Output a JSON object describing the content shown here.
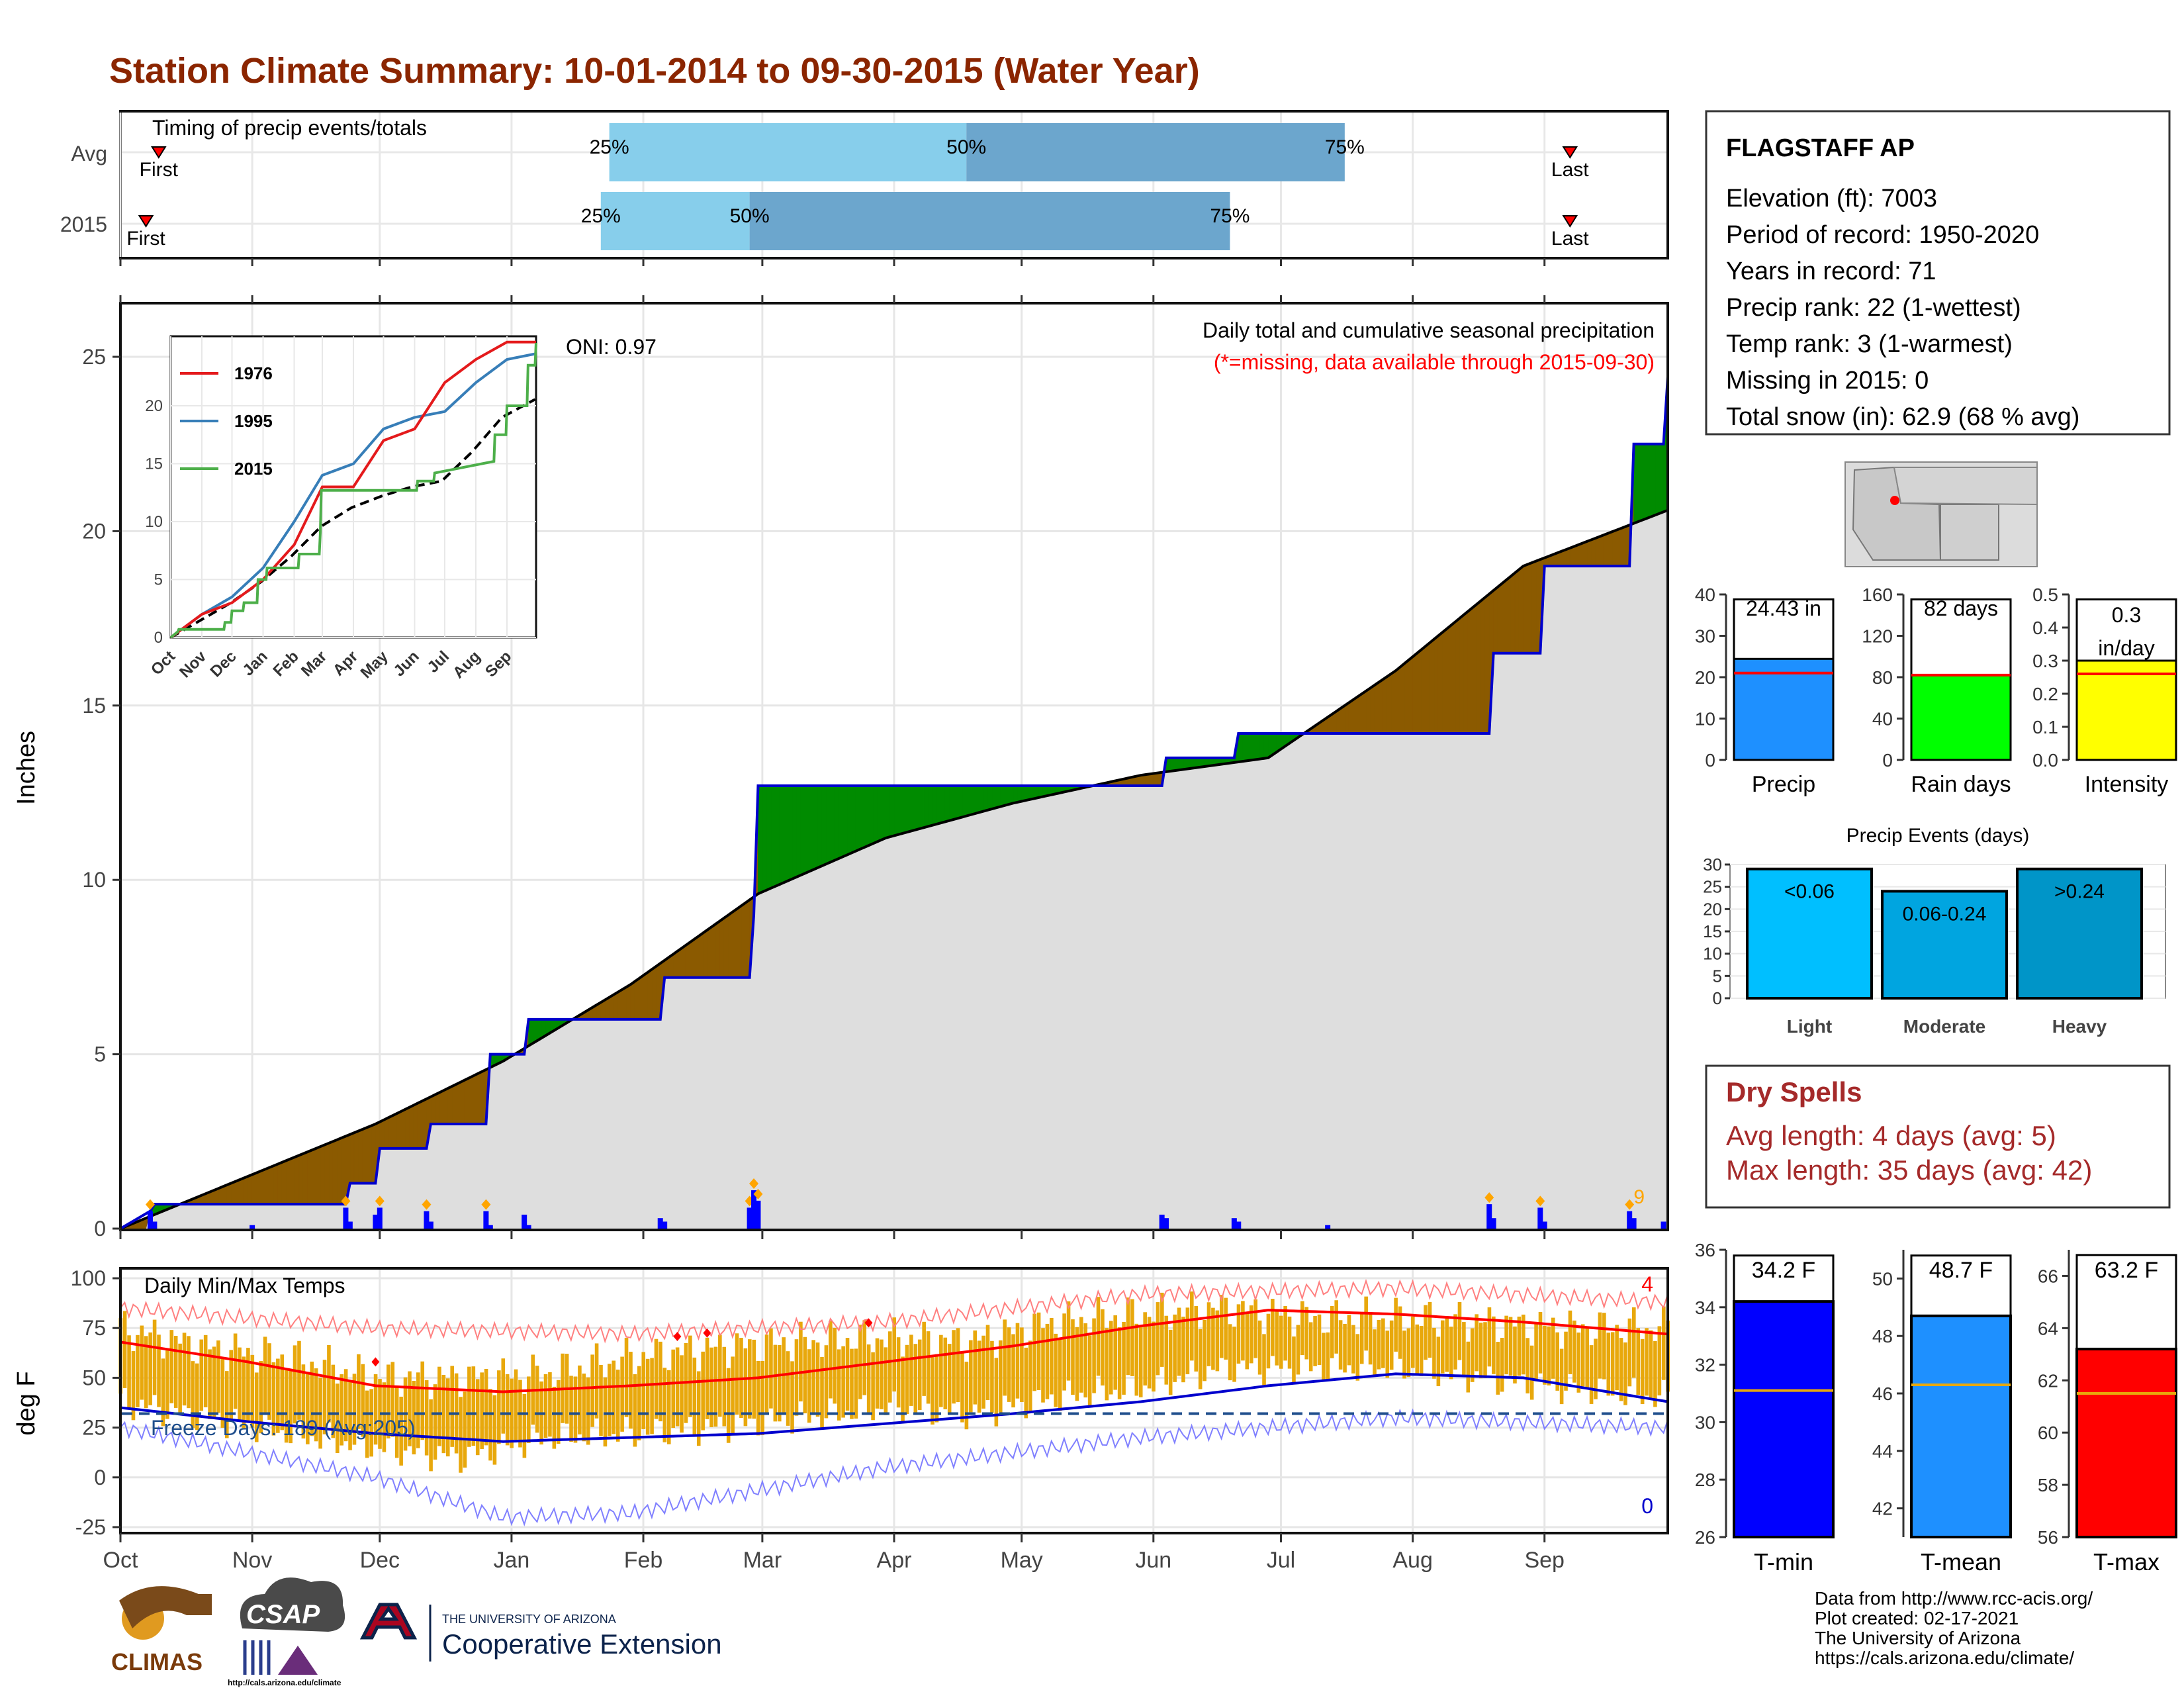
{
  "title": "Station Climate Summary: 10-01-2014 to 09-30-2015 (Water Year)",
  "colors": {
    "title": "#8B2500",
    "light_blue_bar": "#87CEEB",
    "mid_blue_bar": "#6CA6CD",
    "cumulative_obs": "#0000CD",
    "surplus_fill": "#008B00",
    "deficit_fill": "#8B5A00",
    "normal_fill": "#DEDEDE",
    "daily_precip": "#0000FF",
    "temp_bar": "#E8A80C",
    "tmax_normal": "#FF0000",
    "tmin_normal": "#0000CD",
    "missing_text": "#FF0000",
    "dry_spell_text": "#A52A2A"
  },
  "timing_panel": {
    "header": "Timing of precip events/totals",
    "rows": [
      {
        "label": "Avg",
        "first": "First",
        "last": "Last",
        "p25": "25%",
        "p50": "50%",
        "p75": "75%",
        "p25_day": 115,
        "p50_day": 199,
        "p75_day": 288,
        "first_day": 9,
        "last_day": 341
      },
      {
        "label": "2015",
        "first": "First",
        "last": "Last",
        "p25": "25%",
        "p50": "50%",
        "p75": "75%",
        "p25_day": 113,
        "p50_day": 148,
        "p75_day": 261,
        "first_day": 6,
        "last_day": 341
      }
    ]
  },
  "precip_panel": {
    "ylabel": "Inches",
    "title": "Daily total and cumulative seasonal precipitation",
    "missing_note": "(*=missing, data available through 2015-09-30)",
    "oni": "ONI: 0.97",
    "corner_count": "9",
    "yticks": [
      "0",
      "5",
      "10",
      "15",
      "20",
      "25"
    ]
  },
  "inset": {
    "legend": [
      "1976",
      "1995",
      "2015"
    ],
    "legend_colors": [
      "#E41A1C",
      "#377EB8",
      "#4DAF4A"
    ],
    "xticks": [
      "Oct",
      "Nov",
      "Dec",
      "Jan",
      "Feb",
      "Mar",
      "Apr",
      "May",
      "Jun",
      "Jul",
      "Aug",
      "Sep"
    ],
    "yticks": [
      "0",
      "5",
      "10",
      "15",
      "20"
    ]
  },
  "temp_panel": {
    "ylabel": "deg F",
    "title": "Daily Min/Max Temps",
    "freeze_days": "Freeze Days: 189 (Avg:205)",
    "record_high_count": "4",
    "record_low_count": "0",
    "yticks": [
      "-25",
      "0",
      "25",
      "50",
      "75",
      "100"
    ]
  },
  "months": [
    "Oct",
    "Nov",
    "Dec",
    "Jan",
    "Feb",
    "Mar",
    "Apr",
    "May",
    "Jun",
    "Jul",
    "Aug",
    "Sep"
  ],
  "station": {
    "name": "FLAGSTAFF AP",
    "lines": [
      "Elevation (ft): 7003",
      "Period of record: 1950-2020",
      "Years in record: 71",
      "Precip rank: 22 (1-wettest)",
      "Temp rank: 3 (1-warmest)",
      "Missing in 2015: 0",
      "Total snow (in): 62.9 (68 % avg)"
    ]
  },
  "summary_bars": [
    {
      "label": "Precip",
      "value_text": "24.43 in",
      "value": 24.43,
      "normal": 21.0,
      "max": 40,
      "ticks": [
        "0",
        "10",
        "20",
        "30",
        "40"
      ],
      "color": "#1E90FF"
    },
    {
      "label": "Rain days",
      "value_text": "82 days",
      "value": 82,
      "normal": 82,
      "max": 160,
      "ticks": [
        "0",
        "40",
        "80",
        "120",
        "160"
      ],
      "color": "#00FF00"
    },
    {
      "label": "Intensity",
      "value_text": "0.3 in/day",
      "value_line1": "0.3",
      "value_line2": "in/day",
      "value": 0.3,
      "normal": 0.26,
      "max": 0.5,
      "ticks": [
        "0.0",
        "0.1",
        "0.2",
        "0.3",
        "0.4",
        "0.5"
      ],
      "color": "#FFFF00"
    }
  ],
  "precip_events": {
    "title": "Precip Events (days)",
    "ticks": [
      "0",
      "5",
      "10",
      "15",
      "20",
      "25",
      "30"
    ],
    "bars": [
      {
        "label": "Light",
        "range": "<0.06",
        "value": 29,
        "color": "#00BFFF"
      },
      {
        "label": "Moderate",
        "range": "0.06-0.24",
        "value": 24,
        "color": "#00A5E0"
      },
      {
        "label": "Heavy",
        "range": ">0.24",
        "value": 29,
        "color": "#0095C8"
      }
    ]
  },
  "dry_spells": {
    "title": "Dry Spells",
    "avg": "Avg length: 4 days (avg: 5)",
    "max": "Max length: 35 days (avg: 42)"
  },
  "temp_bars": [
    {
      "label": "T-min",
      "value_text": "34.2 F",
      "value": 34.2,
      "normal": 31.1,
      "min": 26,
      "max": 36,
      "ticks": [
        "26",
        "28",
        "30",
        "32",
        "34",
        "36"
      ],
      "color": "#0000FF"
    },
    {
      "label": "T-mean",
      "value_text": "48.7 F",
      "value": 48.7,
      "normal": 46.3,
      "min": 41,
      "max": 51,
      "ticks": [
        "42",
        "44",
        "46",
        "48",
        "50"
      ],
      "tick_vals": [
        42,
        44,
        46,
        48,
        50
      ],
      "color": "#1E90FF"
    },
    {
      "label": "T-max",
      "value_text": "63.2 F",
      "value": 63.2,
      "normal": 61.5,
      "min": 56,
      "max": 67,
      "ticks": [
        "56",
        "58",
        "60",
        "62",
        "64",
        "66"
      ],
      "color": "#FF0000"
    }
  ],
  "footer": {
    "lines": [
      "Data from http://www.rcc-acis.org/",
      "Plot created: 02-17-2021",
      "The University of Arizona",
      "https://cals.arizona.edu/climate/"
    ],
    "logo_climas": "CLIMAS",
    "logo_csap": "CSAP",
    "logo_csap_url": "http://cals.arizona.edu/climate",
    "logo_ua_small": "THE UNIVERSITY OF ARIZONA",
    "logo_ua_big": "Cooperative Extension"
  },
  "chart_data": [
    {
      "type": "area",
      "title": "Daily total and cumulative seasonal precipitation",
      "ylabel": "Inches",
      "ylim": [
        0,
        26.5
      ],
      "x_unit": "day of water year (0 = Oct 1)",
      "series": [
        {
          "name": "cumulative_2015",
          "x": [
            0,
            7,
            8,
            53,
            54,
            60,
            61,
            72,
            73,
            86,
            87,
            95,
            96,
            127,
            128,
            148,
            149,
            150,
            245,
            246,
            262,
            263,
            322,
            323,
            334,
            335,
            355,
            356,
            363,
            364
          ],
          "values": [
            0,
            0.5,
            0.7,
            0.7,
            1.3,
            1.3,
            2.3,
            2.3,
            3.0,
            3.0,
            5.0,
            5.0,
            6.0,
            6.0,
            7.2,
            7.2,
            9.0,
            12.7,
            12.7,
            13.5,
            13.5,
            14.2,
            14.2,
            16.5,
            16.5,
            19.0,
            19.0,
            22.5,
            22.5,
            24.43
          ]
        },
        {
          "name": "cumulative_normal",
          "x": [
            0,
            30,
            60,
            90,
            120,
            150,
            180,
            210,
            240,
            270,
            300,
            330,
            364
          ],
          "values": [
            0,
            1.5,
            3.0,
            4.8,
            7.0,
            9.6,
            11.2,
            12.2,
            13.0,
            13.5,
            16.0,
            19.0,
            20.6
          ]
        }
      ],
      "daily_bars_x": [
        7,
        8,
        31,
        53,
        54,
        60,
        61,
        72,
        73,
        86,
        87,
        95,
        96,
        127,
        128,
        148,
        149,
        150,
        245,
        246,
        262,
        263,
        284,
        322,
        323,
        334,
        335,
        355,
        356,
        363
      ],
      "daily_bars": [
        0.5,
        0.2,
        0.1,
        0.6,
        0.2,
        0.4,
        0.6,
        0.5,
        0.2,
        0.5,
        0.1,
        0.4,
        0.1,
        0.3,
        0.2,
        0.6,
        1.1,
        0.8,
        0.4,
        0.3,
        0.3,
        0.2,
        0.1,
        0.7,
        0.3,
        0.6,
        0.2,
        0.5,
        0.3,
        0.2
      ]
    },
    {
      "type": "line",
      "title": "Daily Min/Max Temps",
      "ylabel": "deg F",
      "ylim": [
        -28,
        105
      ],
      "x_unit": "day of water year (0 = Oct 1)",
      "series": [
        {
          "name": "normal_max",
          "x": [
            0,
            30,
            60,
            90,
            120,
            150,
            180,
            210,
            240,
            270,
            300,
            330,
            364
          ],
          "values": [
            68,
            58,
            46,
            43,
            46,
            50,
            58,
            66,
            76,
            84,
            82,
            78,
            72
          ]
        },
        {
          "name": "normal_min",
          "x": [
            0,
            30,
            60,
            90,
            120,
            150,
            180,
            210,
            240,
            270,
            300,
            330,
            364
          ],
          "values": [
            35,
            28,
            22,
            18,
            20,
            22,
            27,
            32,
            38,
            46,
            52,
            50,
            38
          ]
        },
        {
          "name": "record_max",
          "x": [
            0,
            60,
            120,
            180,
            240,
            300,
            364
          ],
          "values": [
            85,
            75,
            72,
            78,
            92,
            95,
            88
          ]
        },
        {
          "name": "record_min",
          "x": [
            0,
            60,
            90,
            120,
            180,
            240,
            300,
            364
          ],
          "values": [
            25,
            0,
            -20,
            -18,
            5,
            20,
            30,
            25
          ]
        },
        {
          "name": "daily_max_2015",
          "x": [
            0,
            20,
            40,
            60,
            80,
            100,
            120,
            140,
            160,
            180,
            200,
            220,
            240,
            260,
            280,
            300,
            320,
            340,
            364
          ],
          "values": [
            75,
            65,
            60,
            50,
            50,
            52,
            60,
            65,
            68,
            70,
            68,
            78,
            82,
            85,
            80,
            80,
            78,
            75,
            75
          ]
        },
        {
          "name": "daily_min_2015",
          "x": [
            0,
            20,
            40,
            60,
            80,
            100,
            120,
            140,
            160,
            180,
            200,
            220,
            240,
            260,
            280,
            300,
            320,
            340,
            364
          ],
          "values": [
            38,
            30,
            22,
            15,
            10,
            20,
            22,
            25,
            30,
            35,
            32,
            40,
            45,
            55,
            55,
            55,
            50,
            45,
            40
          ]
        }
      ],
      "freeze_threshold": 32
    }
  ]
}
